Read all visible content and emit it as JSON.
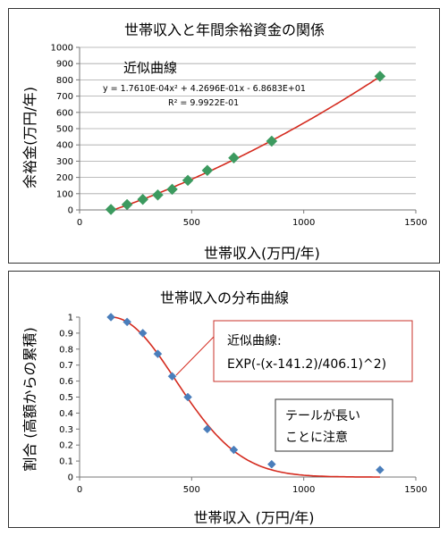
{
  "chart_data": [
    {
      "type": "scatter",
      "title": "世帯収入と年間余裕資金の関係",
      "xlabel": "世帯収入(万円/年)",
      "ylabel": "余裕金(万円/年)",
      "xlim": [
        0,
        1500
      ],
      "ylim": [
        0,
        1000
      ],
      "xticks": [
        "0",
        "500",
        "1000",
        "1500"
      ],
      "yticks": [
        "0",
        "100",
        "200",
        "300",
        "400",
        "500",
        "600",
        "700",
        "800",
        "900",
        "1000"
      ],
      "grid": true,
      "series": [
        {
          "marker": "diamond",
          "color": "#3c9a5f",
          "x": [
            140,
            212,
            282,
            349,
            413,
            483,
            570,
            688,
            857,
            1340
          ],
          "y": [
            3,
            33,
            65,
            92,
            127,
            182,
            243,
            320,
            423,
            822
          ]
        }
      ],
      "trendline": {
        "type": "polynomial",
        "coef": [
          0.0001761,
          0.42696,
          -68.683
        ],
        "x_range": [
          130,
          1340
        ],
        "color": "#d42a1e"
      },
      "annotations": {
        "label": "近似曲線",
        "equation": "y = 1.7610E-04x² + 4.2696E-01x - 6.8683E+01",
        "r2": "R² = 9.9922E-01"
      }
    },
    {
      "type": "scatter",
      "title": "世帯収入の分布曲線",
      "xlabel": "世帯収入 (万円/年)",
      "ylabel": "割合 (高額からの累積)",
      "xlim": [
        0,
        1500
      ],
      "ylim": [
        0,
        1
      ],
      "xticks": [
        "0",
        "500",
        "1000",
        "1500"
      ],
      "yticks": [
        "0",
        "0.1",
        "0.2",
        "0.3",
        "0.4",
        "0.5",
        "0.6",
        "0.7",
        "0.8",
        "0.9",
        "1"
      ],
      "grid": false,
      "series": [
        {
          "marker": "diamond",
          "color": "#4a7ebb",
          "x": [
            140,
            212,
            282,
            349,
            413,
            483,
            570,
            688,
            857,
            1340
          ],
          "y": [
            1.0,
            0.97,
            0.9,
            0.77,
            0.63,
            0.5,
            0.3,
            0.17,
            0.08,
            0.045
          ]
        }
      ],
      "trendline": {
        "type": "gaussian",
        "center": 141.2,
        "scale": 406.1,
        "x_range": [
          141.2,
          1340
        ],
        "color": "#d42a1e"
      },
      "annotations": {
        "fit_label": "近似曲線:",
        "fit_formula": "EXP(-(x-141.2)/406.1)^2)",
        "note_line1": "テールが長い",
        "note_line2": "ことに注意"
      }
    }
  ]
}
